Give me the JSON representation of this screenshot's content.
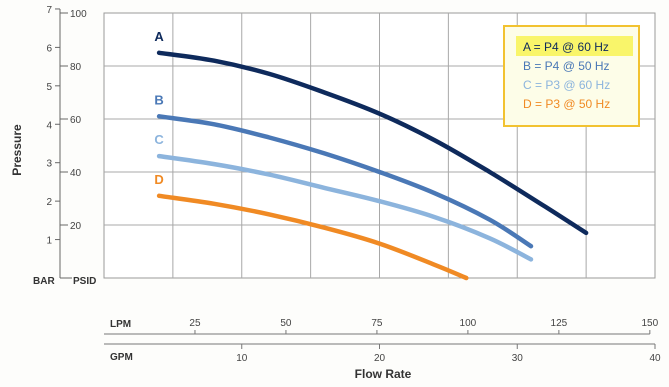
{
  "chart_data": {
    "type": "line",
    "ylabel": "Pressure",
    "xlabel": "Flow Rate",
    "y_units": {
      "psid": "PSID",
      "bar": "BAR"
    },
    "x_units": {
      "lpm": "LPM",
      "gpm": "GPM"
    },
    "ylim": [
      0,
      100
    ],
    "xlim": [
      0,
      40
    ],
    "psid_ticks": [
      "20",
      "40",
      "60",
      "80",
      "100"
    ],
    "bar_ticks": [
      "1",
      "2",
      "3",
      "4",
      "5",
      "6",
      "7"
    ],
    "lpm_ticks": [
      "25",
      "50",
      "75",
      "100",
      "125",
      "150"
    ],
    "gpm_ticks": [
      "10",
      "20",
      "30",
      "40"
    ],
    "grid": true,
    "legend_position": "top-right",
    "series": [
      {
        "name": "A = P4 @ 60 Hz",
        "label": "A",
        "color": "#0e2a5c",
        "x": [
          4,
          8,
          12,
          16,
          20,
          24,
          28,
          32,
          35
        ],
        "y": [
          85,
          82,
          77,
          70,
          62,
          52,
          40,
          27,
          17
        ]
      },
      {
        "name": "B = P4 @ 50 Hz",
        "label": "B",
        "color": "#4a78b6",
        "x": [
          4,
          8,
          12,
          16,
          20,
          24,
          28,
          31
        ],
        "y": [
          61,
          58,
          53,
          47,
          40,
          32,
          22,
          12
        ]
      },
      {
        "name": "C = P3 @ 60 Hz",
        "label": "C",
        "color": "#8cb4dd",
        "x": [
          4,
          8,
          12,
          16,
          20,
          24,
          28,
          31
        ],
        "y": [
          46,
          43,
          39,
          34,
          29,
          23,
          15,
          7
        ]
      },
      {
        "name": "D = P3 @ 50 Hz",
        "label": "D",
        "color": "#f08a24",
        "x": [
          4,
          8,
          12,
          16,
          20,
          24,
          26.3
        ],
        "y": [
          31,
          28,
          24,
          19,
          13,
          5,
          0
        ]
      }
    ]
  }
}
